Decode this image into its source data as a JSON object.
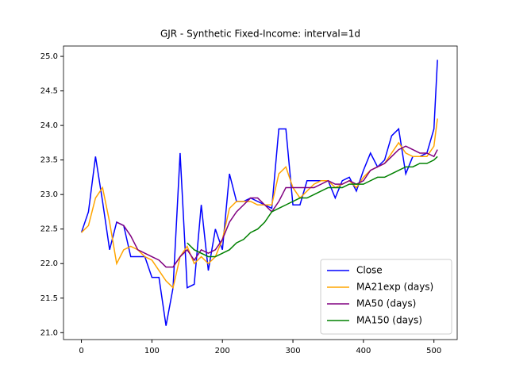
{
  "chart_data": {
    "type": "line",
    "title": "GJR - Synthetic Fixed-Income: interval=1d",
    "x": [
      0,
      10,
      20,
      30,
      40,
      50,
      60,
      70,
      80,
      90,
      100,
      110,
      120,
      130,
      140,
      150,
      160,
      170,
      180,
      190,
      200,
      210,
      220,
      230,
      240,
      250,
      260,
      270,
      280,
      290,
      300,
      310,
      320,
      330,
      340,
      350,
      360,
      370,
      380,
      390,
      400,
      410,
      420,
      430,
      440,
      450,
      460,
      470,
      480,
      490,
      500,
      505
    ],
    "series": [
      {
        "name": "Close",
        "color": "#0000ff",
        "values": [
          22.45,
          22.75,
          23.55,
          22.9,
          22.2,
          22.6,
          22.55,
          22.1,
          22.1,
          22.1,
          21.8,
          21.8,
          21.1,
          21.65,
          23.6,
          21.65,
          21.7,
          22.85,
          21.9,
          22.5,
          22.2,
          23.3,
          22.9,
          22.9,
          22.95,
          22.9,
          22.85,
          22.8,
          23.95,
          23.95,
          22.85,
          22.85,
          23.2,
          23.2,
          23.2,
          23.2,
          22.95,
          23.2,
          23.25,
          23.05,
          23.35,
          23.6,
          23.4,
          23.5,
          23.85,
          23.95,
          23.3,
          23.55,
          23.55,
          23.6,
          23.95,
          24.95
        ]
      },
      {
        "name": "MA21exp (days)",
        "color": "#ffa500",
        "values": [
          22.45,
          22.55,
          22.95,
          23.1,
          22.6,
          22.0,
          22.2,
          22.25,
          22.2,
          22.1,
          22.05,
          21.9,
          21.75,
          21.65,
          22.1,
          22.25,
          22.0,
          22.1,
          22.0,
          22.1,
          22.35,
          22.8,
          22.9,
          22.9,
          22.9,
          22.85,
          22.85,
          22.85,
          23.3,
          23.4,
          23.1,
          22.95,
          23.05,
          23.15,
          23.2,
          23.2,
          23.1,
          23.15,
          23.2,
          23.1,
          23.25,
          23.35,
          23.4,
          23.45,
          23.6,
          23.75,
          23.6,
          23.55,
          23.55,
          23.55,
          23.7,
          24.1
        ]
      },
      {
        "name": "MA50 (days)",
        "color": "#800080",
        "values": [
          null,
          null,
          null,
          null,
          null,
          22.6,
          22.55,
          22.4,
          22.2,
          22.15,
          22.1,
          22.05,
          21.95,
          21.95,
          22.1,
          22.2,
          22.05,
          22.2,
          22.15,
          22.2,
          22.35,
          22.6,
          22.75,
          22.85,
          22.95,
          22.95,
          22.85,
          22.75,
          22.9,
          23.1,
          23.1,
          23.1,
          23.1,
          23.1,
          23.15,
          23.2,
          23.15,
          23.15,
          23.2,
          23.15,
          23.2,
          23.35,
          23.4,
          23.45,
          23.55,
          23.65,
          23.7,
          23.65,
          23.6,
          23.6,
          23.55,
          23.65
        ]
      },
      {
        "name": "MA150 (days)",
        "color": "#008000",
        "values": [
          null,
          null,
          null,
          null,
          null,
          null,
          null,
          null,
          null,
          null,
          null,
          null,
          null,
          null,
          null,
          22.3,
          22.2,
          22.15,
          22.1,
          22.1,
          22.15,
          22.2,
          22.3,
          22.35,
          22.45,
          22.5,
          22.6,
          22.75,
          22.8,
          22.85,
          22.9,
          22.95,
          22.95,
          23.0,
          23.05,
          23.1,
          23.1,
          23.1,
          23.15,
          23.15,
          23.15,
          23.2,
          23.25,
          23.25,
          23.3,
          23.35,
          23.4,
          23.4,
          23.45,
          23.45,
          23.5,
          23.55
        ]
      }
    ],
    "xlim": [
      -25.4,
      533
    ],
    "ylim": [
      20.9,
      25.15
    ],
    "xticks": [
      0,
      100,
      200,
      300,
      400,
      500
    ],
    "yticks": [
      {
        "value": 21,
        "label": "21.0"
      },
      21.5,
      {
        "value": 22,
        "label": "22.0"
      },
      22.5,
      {
        "value": 23,
        "label": "23.0"
      },
      23.5,
      {
        "value": 24,
        "label": "24.0"
      },
      24.5,
      {
        "value": 25,
        "label": "25.0"
      }
    ],
    "legend": "lower right"
  }
}
